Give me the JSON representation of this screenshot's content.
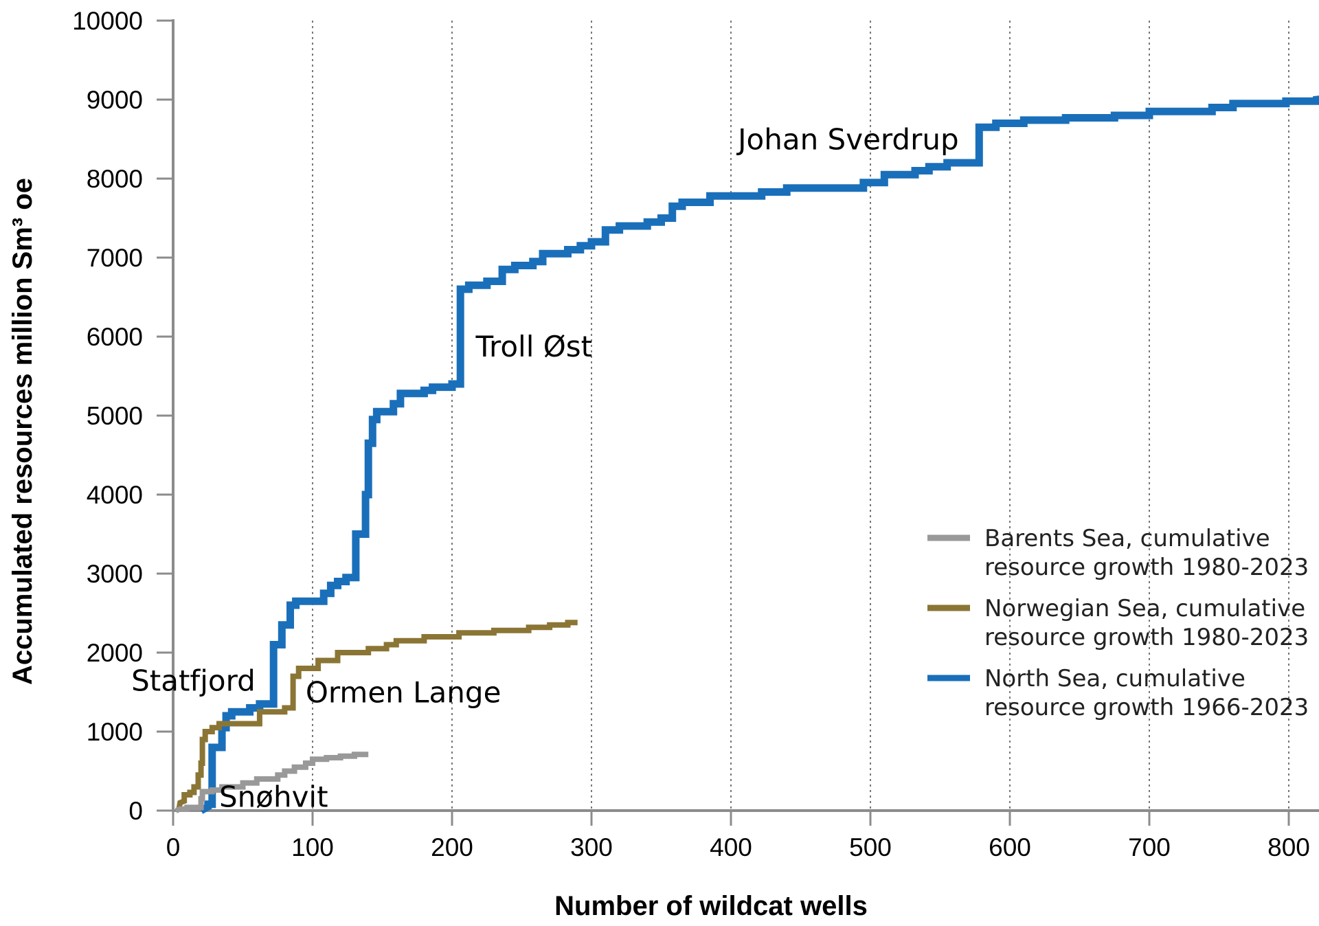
{
  "chart_data": {
    "type": "line",
    "xlabel": "Number of wildcat wells",
    "ylabel": "Accumulated resources million Sm³ oe",
    "xlim": [
      0,
      830
    ],
    "ylim": [
      0,
      10000
    ],
    "x_ticks": [
      0,
      100,
      200,
      300,
      400,
      500,
      600,
      700,
      800
    ],
    "y_ticks": [
      0,
      1000,
      2000,
      3000,
      4000,
      5000,
      6000,
      7000,
      8000,
      9000,
      10000
    ],
    "grid": "vertical dotted",
    "legend_position": "bottom-right",
    "series": [
      {
        "name": "North Sea, cumulative resource growth 1966-2023",
        "color": "#1a6fba",
        "points": [
          [
            20,
            0
          ],
          [
            25,
            50
          ],
          [
            25,
            80
          ],
          [
            28,
            80
          ],
          [
            28,
            800
          ],
          [
            35,
            800
          ],
          [
            35,
            1050
          ],
          [
            38,
            1050
          ],
          [
            38,
            1200
          ],
          [
            42,
            1200
          ],
          [
            42,
            1250
          ],
          [
            55,
            1250
          ],
          [
            55,
            1300
          ],
          [
            62,
            1300
          ],
          [
            62,
            1350
          ],
          [
            72,
            1350
          ],
          [
            72,
            2100
          ],
          [
            78,
            2100
          ],
          [
            78,
            2350
          ],
          [
            84,
            2350
          ],
          [
            84,
            2600
          ],
          [
            88,
            2600
          ],
          [
            88,
            2650
          ],
          [
            108,
            2650
          ],
          [
            108,
            2750
          ],
          [
            113,
            2750
          ],
          [
            113,
            2850
          ],
          [
            118,
            2850
          ],
          [
            118,
            2900
          ],
          [
            124,
            2900
          ],
          [
            124,
            2950
          ],
          [
            131,
            2950
          ],
          [
            131,
            3500
          ],
          [
            138,
            3500
          ],
          [
            138,
            4000
          ],
          [
            140,
            4000
          ],
          [
            140,
            4650
          ],
          [
            143,
            4650
          ],
          [
            143,
            4950
          ],
          [
            146,
            4950
          ],
          [
            146,
            5050
          ],
          [
            158,
            5050
          ],
          [
            158,
            5150
          ],
          [
            163,
            5150
          ],
          [
            163,
            5280
          ],
          [
            180,
            5280
          ],
          [
            180,
            5320
          ],
          [
            186,
            5320
          ],
          [
            186,
            5360
          ],
          [
            200,
            5360
          ],
          [
            200,
            5400
          ],
          [
            206,
            5400
          ],
          [
            206,
            6600
          ],
          [
            212,
            6600
          ],
          [
            212,
            6650
          ],
          [
            225,
            6650
          ],
          [
            225,
            6700
          ],
          [
            236,
            6700
          ],
          [
            236,
            6850
          ],
          [
            245,
            6850
          ],
          [
            245,
            6900
          ],
          [
            258,
            6900
          ],
          [
            258,
            6950
          ],
          [
            265,
            6950
          ],
          [
            265,
            7050
          ],
          [
            283,
            7050
          ],
          [
            283,
            7100
          ],
          [
            292,
            7100
          ],
          [
            292,
            7150
          ],
          [
            300,
            7150
          ],
          [
            300,
            7200
          ],
          [
            310,
            7200
          ],
          [
            310,
            7350
          ],
          [
            320,
            7350
          ],
          [
            320,
            7400
          ],
          [
            340,
            7400
          ],
          [
            340,
            7450
          ],
          [
            350,
            7450
          ],
          [
            350,
            7500
          ],
          [
            358,
            7500
          ],
          [
            358,
            7650
          ],
          [
            365,
            7650
          ],
          [
            365,
            7700
          ],
          [
            385,
            7700
          ],
          [
            385,
            7780
          ],
          [
            422,
            7780
          ],
          [
            422,
            7830
          ],
          [
            440,
            7830
          ],
          [
            440,
            7880
          ],
          [
            495,
            7880
          ],
          [
            495,
            7950
          ],
          [
            510,
            7950
          ],
          [
            510,
            8050
          ],
          [
            532,
            8050
          ],
          [
            532,
            8100
          ],
          [
            542,
            8100
          ],
          [
            542,
            8150
          ],
          [
            555,
            8150
          ],
          [
            555,
            8200
          ],
          [
            578,
            8200
          ],
          [
            578,
            8650
          ],
          [
            590,
            8650
          ],
          [
            590,
            8700
          ],
          [
            610,
            8700
          ],
          [
            610,
            8740
          ],
          [
            640,
            8740
          ],
          [
            640,
            8770
          ],
          [
            675,
            8770
          ],
          [
            675,
            8800
          ],
          [
            700,
            8800
          ],
          [
            700,
            8850
          ],
          [
            745,
            8850
          ],
          [
            745,
            8900
          ],
          [
            760,
            8900
          ],
          [
            760,
            8950
          ],
          [
            798,
            8950
          ],
          [
            798,
            8980
          ],
          [
            820,
            8980
          ],
          [
            820,
            9000
          ],
          [
            830,
            9020
          ]
        ]
      },
      {
        "name": "Norwegian Sea, cumulative resource growth 1980-2023",
        "color": "#8b7535",
        "points": [
          [
            4,
            0
          ],
          [
            5,
            100
          ],
          [
            8,
            120
          ],
          [
            8,
            200
          ],
          [
            12,
            200
          ],
          [
            12,
            230
          ],
          [
            15,
            230
          ],
          [
            15,
            300
          ],
          [
            18,
            300
          ],
          [
            18,
            450
          ],
          [
            20,
            450
          ],
          [
            20,
            600
          ],
          [
            21,
            600
          ],
          [
            21,
            900
          ],
          [
            23,
            900
          ],
          [
            23,
            1000
          ],
          [
            28,
            1000
          ],
          [
            28,
            1050
          ],
          [
            33,
            1050
          ],
          [
            33,
            1100
          ],
          [
            62,
            1100
          ],
          [
            62,
            1250
          ],
          [
            80,
            1250
          ],
          [
            80,
            1300
          ],
          [
            86,
            1300
          ],
          [
            86,
            1700
          ],
          [
            90,
            1700
          ],
          [
            90,
            1800
          ],
          [
            104,
            1800
          ],
          [
            104,
            1900
          ],
          [
            118,
            1900
          ],
          [
            118,
            2000
          ],
          [
            140,
            2000
          ],
          [
            140,
            2050
          ],
          [
            153,
            2050
          ],
          [
            153,
            2100
          ],
          [
            160,
            2100
          ],
          [
            160,
            2150
          ],
          [
            180,
            2150
          ],
          [
            180,
            2200
          ],
          [
            205,
            2200
          ],
          [
            205,
            2250
          ],
          [
            230,
            2250
          ],
          [
            230,
            2280
          ],
          [
            255,
            2280
          ],
          [
            255,
            2320
          ],
          [
            270,
            2320
          ],
          [
            270,
            2350
          ],
          [
            283,
            2350
          ],
          [
            283,
            2380
          ],
          [
            290,
            2380
          ]
        ]
      },
      {
        "name": "Barents Sea, cumulative resource growth 1980-2023",
        "color": "#999999",
        "points": [
          [
            2,
            0
          ],
          [
            5,
            20
          ],
          [
            10,
            20
          ],
          [
            10,
            40
          ],
          [
            20,
            40
          ],
          [
            20,
            150
          ],
          [
            21,
            150
          ],
          [
            21,
            240
          ],
          [
            28,
            240
          ],
          [
            28,
            260
          ],
          [
            35,
            260
          ],
          [
            35,
            300
          ],
          [
            50,
            300
          ],
          [
            50,
            350
          ],
          [
            60,
            350
          ],
          [
            60,
            400
          ],
          [
            75,
            400
          ],
          [
            75,
            450
          ],
          [
            80,
            450
          ],
          [
            80,
            500
          ],
          [
            87,
            500
          ],
          [
            87,
            550
          ],
          [
            95,
            550
          ],
          [
            95,
            600
          ],
          [
            100,
            600
          ],
          [
            100,
            650
          ],
          [
            110,
            650
          ],
          [
            110,
            670
          ],
          [
            120,
            670
          ],
          [
            120,
            690
          ],
          [
            130,
            690
          ],
          [
            130,
            710
          ],
          [
            140,
            710
          ]
        ]
      }
    ],
    "annotations": [
      {
        "text": "Johan Sverdrup",
        "x": 405,
        "y": 8500
      },
      {
        "text": "Troll Øst",
        "x": 217,
        "y": 5880
      },
      {
        "text": "Statfjord",
        "x": -30,
        "y": 1650
      },
      {
        "text": "Ormen Lange",
        "x": 95,
        "y": 1500
      },
      {
        "text": "Snøhvit",
        "x": 33,
        "y": 180
      }
    ],
    "legend_lines": [
      [
        "Barents Sea, cumulative",
        "resource growth 1980-2023"
      ],
      [
        "Norwegian Sea, cumulative",
        "resource growth 1980-2023"
      ],
      [
        "North Sea, cumulative",
        "resource growth 1966-2023"
      ]
    ]
  }
}
